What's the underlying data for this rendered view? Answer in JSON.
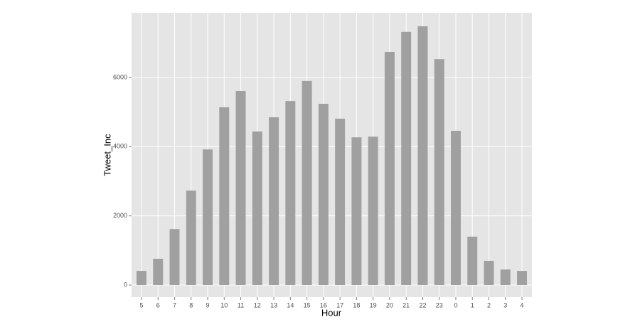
{
  "chart_data": {
    "type": "bar",
    "x_label": "Hour",
    "y_label": "Tweet_Inc",
    "categories": [
      "5",
      "6",
      "7",
      "8",
      "9",
      "10",
      "11",
      "12",
      "13",
      "14",
      "15",
      "16",
      "17",
      "18",
      "19",
      "20",
      "21",
      "22",
      "23",
      "0",
      "1",
      "2",
      "3",
      "4"
    ],
    "values": [
      410,
      760,
      1620,
      2730,
      3920,
      5140,
      5610,
      4440,
      4850,
      5320,
      5900,
      5240,
      4810,
      4270,
      4290,
      6740,
      7320,
      7480,
      6530,
      4460,
      1400,
      700,
      450,
      410
    ],
    "color": "#a0a0a0",
    "ylim": [
      -349,
      7870
    ],
    "yticks": [
      0,
      2000,
      4000,
      6000
    ],
    "grid": true
  }
}
